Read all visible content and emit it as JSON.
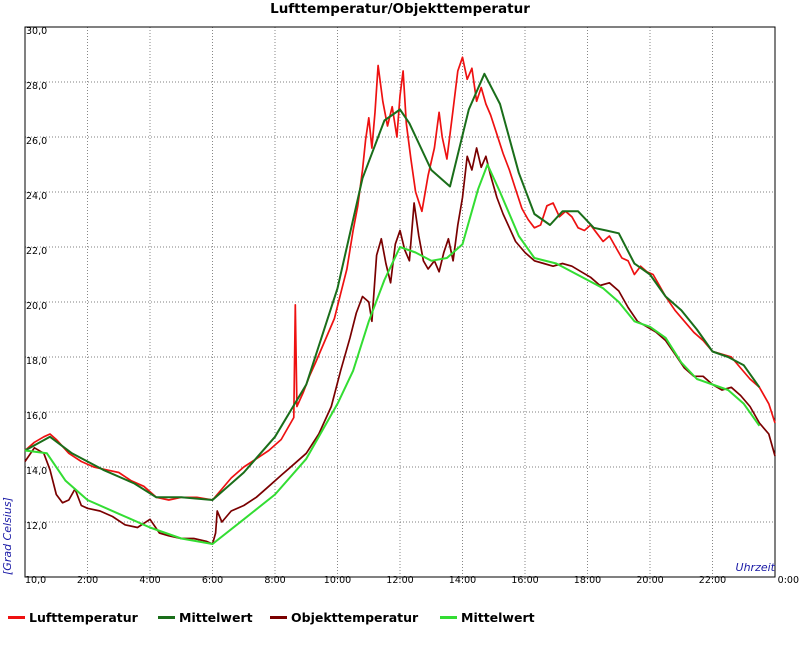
{
  "chart_data": {
    "type": "line",
    "title": "Lufttemperatur/Objekttemperatur",
    "xlabel": "Uhrzeit",
    "ylabel": "[Grad Celsius]",
    "xlim": [
      0,
      24
    ],
    "ylim": [
      10,
      30
    ],
    "x_tick_labels": [
      "10,0",
      "2:00",
      "4:00",
      "6:00",
      "8:00",
      "10:00",
      "12:00",
      "14:00",
      "16:00",
      "18:00",
      "20:00",
      "22:00",
      "0:00"
    ],
    "y_tick_labels": [
      "10,0",
      "12,0",
      "14,0",
      "16,0",
      "18,0",
      "20,0",
      "22,0",
      "24,0",
      "26,0",
      "28,0",
      "30,0"
    ],
    "grid": true,
    "legend_position": "bottom",
    "x_unit": "hours",
    "series": [
      {
        "name": "Lufttemperatur",
        "color": "#ee1111",
        "x": [
          0,
          0.3,
          0.6,
          0.8,
          1.0,
          1.4,
          1.8,
          2.2,
          2.6,
          3.0,
          3.4,
          3.8,
          4.2,
          4.6,
          5.0,
          5.5,
          6.0,
          6.3,
          6.6,
          7.0,
          7.4,
          7.8,
          8.2,
          8.4,
          8.6,
          8.65,
          8.7,
          8.9,
          9.1,
          9.3,
          9.6,
          9.9,
          10.1,
          10.3,
          10.5,
          10.65,
          10.8,
          10.9,
          11.0,
          11.1,
          11.2,
          11.3,
          11.45,
          11.6,
          11.75,
          11.9,
          12.0,
          12.1,
          12.2,
          12.35,
          12.5,
          12.7,
          12.9,
          13.1,
          13.25,
          13.35,
          13.5,
          13.7,
          13.85,
          14.0,
          14.15,
          14.3,
          14.45,
          14.6,
          14.75,
          14.9,
          15.1,
          15.3,
          15.5,
          15.7,
          15.9,
          16.1,
          16.3,
          16.5,
          16.7,
          16.9,
          17.1,
          17.3,
          17.5,
          17.7,
          17.9,
          18.1,
          18.3,
          18.5,
          18.7,
          18.9,
          19.1,
          19.3,
          19.5,
          19.7,
          19.9,
          20.1,
          20.3,
          20.5,
          20.8,
          21.1,
          21.4,
          21.7,
          22.0,
          22.3,
          22.6,
          22.9,
          23.2,
          23.5,
          23.8,
          24.0
        ],
        "values": [
          14.6,
          14.9,
          15.1,
          15.2,
          15.0,
          14.5,
          14.2,
          14.0,
          13.9,
          13.8,
          13.5,
          13.3,
          12.9,
          12.8,
          12.9,
          12.9,
          12.8,
          13.2,
          13.6,
          14.0,
          14.3,
          14.6,
          15.0,
          15.4,
          15.8,
          19.9,
          16.2,
          16.7,
          17.3,
          17.8,
          18.6,
          19.4,
          20.3,
          21.2,
          22.6,
          23.5,
          24.8,
          25.9,
          26.7,
          25.6,
          26.9,
          28.6,
          27.3,
          26.4,
          27.1,
          26.0,
          27.5,
          28.4,
          26.5,
          25.2,
          24.0,
          23.3,
          24.6,
          25.6,
          26.9,
          26.0,
          25.2,
          27.0,
          28.4,
          28.9,
          28.1,
          28.5,
          27.3,
          27.8,
          27.2,
          26.8,
          26.1,
          25.4,
          24.8,
          24.1,
          23.4,
          23.0,
          22.7,
          22.8,
          23.5,
          23.6,
          23.1,
          23.3,
          23.1,
          22.7,
          22.6,
          22.8,
          22.5,
          22.2,
          22.4,
          22.0,
          21.6,
          21.5,
          21.0,
          21.3,
          21.1,
          21.0,
          20.6,
          20.2,
          19.7,
          19.3,
          18.9,
          18.6,
          18.2,
          18.1,
          18.0,
          17.6,
          17.2,
          16.9,
          16.3,
          15.6
        ]
      },
      {
        "name": "Mittelwert",
        "color": "#1a6e1a",
        "x": [
          0,
          0.8,
          1.5,
          2.5,
          3.5,
          4.2,
          5.0,
          6.0,
          7.0,
          8.0,
          9.0,
          10.0,
          10.8,
          11.5,
          12.0,
          12.3,
          13.0,
          13.6,
          14.2,
          14.7,
          15.2,
          15.8,
          16.3,
          16.8,
          17.2,
          17.7,
          18.2,
          18.6,
          19.0,
          19.5,
          20.0,
          20.5,
          21.0,
          21.5,
          22.0,
          22.5,
          23.0,
          23.5
        ],
        "values": [
          14.6,
          15.1,
          14.5,
          13.9,
          13.4,
          12.9,
          12.9,
          12.8,
          13.8,
          15.1,
          17.0,
          20.5,
          24.5,
          26.6,
          27.0,
          26.5,
          24.8,
          24.2,
          27.0,
          28.3,
          27.2,
          24.7,
          23.2,
          22.8,
          23.3,
          23.3,
          22.7,
          22.6,
          22.5,
          21.4,
          21.0,
          20.2,
          19.7,
          19.0,
          18.2,
          18.0,
          17.7,
          16.9
        ]
      },
      {
        "name": "Objekttemperatur",
        "color": "#7a0000",
        "x": [
          0,
          0.3,
          0.6,
          0.8,
          1.0,
          1.2,
          1.4,
          1.6,
          1.8,
          2.0,
          2.4,
          2.8,
          3.2,
          3.6,
          4.0,
          4.3,
          4.6,
          5.0,
          5.4,
          5.8,
          6.0,
          6.1,
          6.15,
          6.3,
          6.6,
          7.0,
          7.4,
          7.8,
          8.2,
          8.6,
          9.0,
          9.4,
          9.8,
          10.1,
          10.4,
          10.6,
          10.8,
          11.0,
          11.1,
          11.25,
          11.4,
          11.55,
          11.7,
          11.85,
          12.0,
          12.15,
          12.3,
          12.45,
          12.6,
          12.75,
          12.9,
          13.1,
          13.25,
          13.4,
          13.55,
          13.7,
          13.85,
          14.0,
          14.15,
          14.3,
          14.45,
          14.6,
          14.75,
          14.9,
          15.1,
          15.3,
          15.5,
          15.7,
          16.0,
          16.3,
          16.6,
          16.9,
          17.2,
          17.5,
          17.8,
          18.1,
          18.4,
          18.7,
          19.0,
          19.3,
          19.6,
          19.9,
          20.2,
          20.5,
          20.8,
          21.1,
          21.4,
          21.7,
          22.0,
          22.3,
          22.6,
          22.9,
          23.2,
          23.5,
          23.8,
          24.0
        ],
        "values": [
          14.2,
          14.7,
          14.5,
          13.9,
          13.0,
          12.7,
          12.8,
          13.2,
          12.6,
          12.5,
          12.4,
          12.2,
          11.9,
          11.8,
          12.1,
          11.6,
          11.5,
          11.4,
          11.4,
          11.3,
          11.2,
          11.6,
          12.4,
          12.0,
          12.4,
          12.6,
          12.9,
          13.3,
          13.7,
          14.1,
          14.5,
          15.2,
          16.2,
          17.5,
          18.7,
          19.6,
          20.2,
          20.0,
          19.3,
          21.7,
          22.3,
          21.4,
          20.7,
          22.1,
          22.6,
          21.9,
          21.5,
          23.6,
          22.4,
          21.5,
          21.2,
          21.5,
          21.1,
          21.8,
          22.3,
          21.5,
          22.8,
          23.8,
          25.3,
          24.8,
          25.6,
          24.9,
          25.3,
          24.6,
          23.8,
          23.2,
          22.7,
          22.2,
          21.8,
          21.5,
          21.4,
          21.3,
          21.4,
          21.3,
          21.1,
          20.9,
          20.6,
          20.7,
          20.4,
          19.8,
          19.3,
          19.1,
          18.9,
          18.6,
          18.1,
          17.6,
          17.3,
          17.3,
          17.0,
          16.8,
          16.9,
          16.6,
          16.2,
          15.6,
          15.2,
          14.4
        ]
      },
      {
        "name": "Mittelwert",
        "color": "#33dd33",
        "x": [
          0,
          0.7,
          1.3,
          2.0,
          3.0,
          4.0,
          5.0,
          6.0,
          7.0,
          8.0,
          9.0,
          10.0,
          10.5,
          11.0,
          11.5,
          12.0,
          12.5,
          13.0,
          13.5,
          14.0,
          14.5,
          14.8,
          15.2,
          15.8,
          16.3,
          17.0,
          17.5,
          18.0,
          18.5,
          19.0,
          19.5,
          20.0,
          20.5,
          21.0,
          21.5,
          22.0,
          22.5,
          23.0,
          23.5
        ],
        "values": [
          14.6,
          14.5,
          13.5,
          12.8,
          12.3,
          11.8,
          11.4,
          11.2,
          12.1,
          13.0,
          14.3,
          16.3,
          17.5,
          19.3,
          20.8,
          22.0,
          21.8,
          21.5,
          21.6,
          22.1,
          24.1,
          25.0,
          24.0,
          22.4,
          21.6,
          21.4,
          21.1,
          20.8,
          20.5,
          20.0,
          19.3,
          19.1,
          18.7,
          17.8,
          17.2,
          17.0,
          16.8,
          16.3,
          15.5
        ]
      }
    ]
  }
}
